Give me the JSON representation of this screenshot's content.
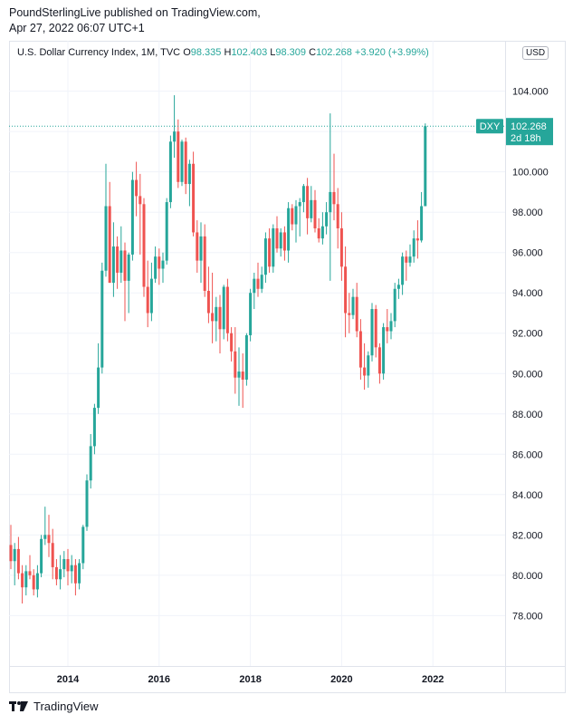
{
  "publisher": {
    "line1": "PoundSterlingLive published on TradingView.com,",
    "line2": "Apr 27, 2022 06:07 UTC+1"
  },
  "legend": {
    "symbol": "U.S. Dollar Currency Index, 1M, TVC",
    "open_key": "O",
    "open": "98.335",
    "high_key": "H",
    "high": "102.403",
    "low_key": "L",
    "low": "98.309",
    "close_key": "C",
    "close": "102.268",
    "change": "+3.920 (+3.99%)"
  },
  "currency_badge": "USD",
  "price_tag": {
    "symbol": "DXY",
    "price": "102.268",
    "countdown": "2d 18h"
  },
  "footer": {
    "brand": "TradingView"
  },
  "colors": {
    "up": "#26a69a",
    "down": "#ef5350",
    "grid": "#f0f3fa",
    "axis_text": "#131722"
  },
  "chart_data": {
    "type": "candlestick",
    "title": "U.S. Dollar Currency Index",
    "ylim": [
      75.5,
      106.5
    ],
    "yticks": [
      "78.000",
      "80.000",
      "82.000",
      "84.000",
      "86.000",
      "88.000",
      "90.000",
      "92.000",
      "94.000",
      "96.000",
      "98.000",
      "100.000",
      "102.000",
      "104.000"
    ],
    "xticks": [
      {
        "label": "2014",
        "index": 15
      },
      {
        "label": "2016",
        "index": 39
      },
      {
        "label": "2018",
        "index": 63
      },
      {
        "label": "2020",
        "index": 87
      },
      {
        "label": "2022",
        "index": 111
      }
    ],
    "last_price": 102.268,
    "candles": [
      [
        81.5,
        82.5,
        80.3,
        80.7
      ],
      [
        80.7,
        81.6,
        79.5,
        81.3
      ],
      [
        81.3,
        81.9,
        79.8,
        80.1
      ],
      [
        80.1,
        80.5,
        78.6,
        79.4
      ],
      [
        79.4,
        80.5,
        79.0,
        80.2
      ],
      [
        80.2,
        81.0,
        79.8,
        80.0
      ],
      [
        80.0,
        80.3,
        79.0,
        79.3
      ],
      [
        79.3,
        80.5,
        78.9,
        80.1
      ],
      [
        80.1,
        82.0,
        79.9,
        81.8
      ],
      [
        81.8,
        83.4,
        81.5,
        82.0
      ],
      [
        82.0,
        83.0,
        80.9,
        81.6
      ],
      [
        81.6,
        82.3,
        79.8,
        80.4
      ],
      [
        80.4,
        80.8,
        79.5,
        79.8
      ],
      [
        79.8,
        81.0,
        79.3,
        80.3
      ],
      [
        80.3,
        81.2,
        79.9,
        80.8
      ],
      [
        80.8,
        81.3,
        79.5,
        80.2
      ],
      [
        80.2,
        81.0,
        79.6,
        80.5
      ],
      [
        80.5,
        80.8,
        79.0,
        79.6
      ],
      [
        79.6,
        80.8,
        79.3,
        80.6
      ],
      [
        80.6,
        82.5,
        80.3,
        82.4
      ],
      [
        82.4,
        85.0,
        82.2,
        84.7
      ],
      [
        84.7,
        87.0,
        84.3,
        86.4
      ],
      [
        86.4,
        88.5,
        86.0,
        88.3
      ],
      [
        88.3,
        91.5,
        88.0,
        90.3
      ],
      [
        90.3,
        95.5,
        90.0,
        95.1
      ],
      [
        95.1,
        100.4,
        94.8,
        98.3
      ],
      [
        98.3,
        99.5,
        94.5,
        94.5
      ],
      [
        94.5,
        97.5,
        93.8,
        96.3
      ],
      [
        96.3,
        96.8,
        94.2,
        95.0
      ],
      [
        95.0,
        97.3,
        94.5,
        96.1
      ],
      [
        96.1,
        96.5,
        92.6,
        94.6
      ],
      [
        94.6,
        96.0,
        93.0,
        95.9
      ],
      [
        95.9,
        100.0,
        95.6,
        99.6
      ],
      [
        99.6,
        100.5,
        97.8,
        98.8
      ],
      [
        98.8,
        99.9,
        95.9,
        98.4
      ],
      [
        98.4,
        98.7,
        93.8,
        94.3
      ],
      [
        94.3,
        95.6,
        92.3,
        93.0
      ],
      [
        93.0,
        95.5,
        92.6,
        94.7
      ],
      [
        94.7,
        96.3,
        94.5,
        95.8
      ],
      [
        95.8,
        96.2,
        94.4,
        95.2
      ],
      [
        95.2,
        96.0,
        94.5,
        95.6
      ],
      [
        95.6,
        98.7,
        95.4,
        98.5
      ],
      [
        98.5,
        101.8,
        98.2,
        101.5
      ],
      [
        101.5,
        103.8,
        100.7,
        102.0
      ],
      [
        102.0,
        102.6,
        99.2,
        99.5
      ],
      [
        99.5,
        101.6,
        99.3,
        101.5
      ],
      [
        101.5,
        101.7,
        98.9,
        99.4
      ],
      [
        99.4,
        100.6,
        98.3,
        100.4
      ],
      [
        100.4,
        101.0,
        96.8,
        97.0
      ],
      [
        97.0,
        97.6,
        95.0,
        95.6
      ],
      [
        95.6,
        97.5,
        94.5,
        96.8
      ],
      [
        96.8,
        97.4,
        93.8,
        94.1
      ],
      [
        94.1,
        95.3,
        92.5,
        93.0
      ],
      [
        93.0,
        95.0,
        91.5,
        92.6
      ],
      [
        92.6,
        93.8,
        91.6,
        93.3
      ],
      [
        93.3,
        93.9,
        91.0,
        92.2
      ],
      [
        92.2,
        94.4,
        91.7,
        94.3
      ],
      [
        94.3,
        94.7,
        91.6,
        92.0
      ],
      [
        92.0,
        92.3,
        90.6,
        91.1
      ],
      [
        91.1,
        92.3,
        89.0,
        89.8
      ],
      [
        89.8,
        91.3,
        88.4,
        90.1
      ],
      [
        90.1,
        91.0,
        88.3,
        89.7
      ],
      [
        89.7,
        92.0,
        89.4,
        91.9
      ],
      [
        91.9,
        94.2,
        91.6,
        94.0
      ],
      [
        94.0,
        95.0,
        93.2,
        94.7
      ],
      [
        94.7,
        95.5,
        93.8,
        94.2
      ],
      [
        94.2,
        95.3,
        94.0,
        94.9
      ],
      [
        94.9,
        97.0,
        94.5,
        96.7
      ],
      [
        96.7,
        97.2,
        95.0,
        95.3
      ],
      [
        95.3,
        97.4,
        95.0,
        97.2
      ],
      [
        97.2,
        97.8,
        96.0,
        96.2
      ],
      [
        96.2,
        97.2,
        95.8,
        97.0
      ],
      [
        97.0,
        97.3,
        95.6,
        96.1
      ],
      [
        96.1,
        98.5,
        95.5,
        98.2
      ],
      [
        98.2,
        98.4,
        97.1,
        97.4
      ],
      [
        97.4,
        98.6,
        96.5,
        98.3
      ],
      [
        98.3,
        98.7,
        96.8,
        98.5
      ],
      [
        98.5,
        99.4,
        98.0,
        99.3
      ],
      [
        99.3,
        99.7,
        96.9,
        97.7
      ],
      [
        97.7,
        99.3,
        97.5,
        98.6
      ],
      [
        98.6,
        99.1,
        97.0,
        97.2
      ],
      [
        97.2,
        97.7,
        96.5,
        96.7
      ],
      [
        96.7,
        98.0,
        96.4,
        97.3
      ],
      [
        97.3,
        98.5,
        96.9,
        98.0
      ],
      [
        98.0,
        102.9,
        94.6,
        99.0
      ],
      [
        99.0,
        100.9,
        97.6,
        98.4
      ],
      [
        98.4,
        99.2,
        96.2,
        97.2
      ],
      [
        97.2,
        98.0,
        94.6,
        95.3
      ],
      [
        95.3,
        96.3,
        91.8,
        93.0
      ],
      [
        93.0,
        94.0,
        92.0,
        92.9
      ],
      [
        92.9,
        94.2,
        92.7,
        93.8
      ],
      [
        93.8,
        94.5,
        91.8,
        92.1
      ],
      [
        92.1,
        92.7,
        89.7,
        90.3
      ],
      [
        90.3,
        91.5,
        89.2,
        89.9
      ],
      [
        89.9,
        91.1,
        89.3,
        90.9
      ],
      [
        90.9,
        93.5,
        90.6,
        93.2
      ],
      [
        93.2,
        93.4,
        90.8,
        91.3
      ],
      [
        91.3,
        91.5,
        89.5,
        90.0
      ],
      [
        90.0,
        92.5,
        89.7,
        92.3
      ],
      [
        92.3,
        93.2,
        91.5,
        92.1
      ],
      [
        92.1,
        93.0,
        91.7,
        92.6
      ],
      [
        92.6,
        94.5,
        92.3,
        94.2
      ],
      [
        94.2,
        94.7,
        93.7,
        94.4
      ],
      [
        94.4,
        96.0,
        93.9,
        95.8
      ],
      [
        95.8,
        96.1,
        94.6,
        95.5
      ],
      [
        95.5,
        96.4,
        95.3,
        95.8
      ],
      [
        95.8,
        97.1,
        95.5,
        96.7
      ],
      [
        96.7,
        97.6,
        95.7,
        96.6
      ],
      [
        96.6,
        99.0,
        96.5,
        98.3
      ],
      [
        98.3,
        102.403,
        98.309,
        102.268
      ]
    ]
  }
}
